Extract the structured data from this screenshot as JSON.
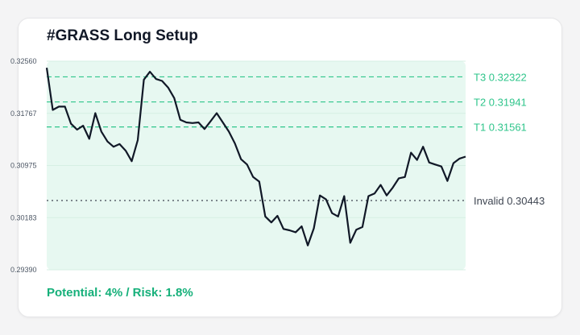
{
  "title": "#GRASS Long Setup",
  "footer": "Potential: 4% / Risk: 1.8%",
  "colors": {
    "target": "#2fc58b",
    "invalid": "#3f4652",
    "line": "#111827",
    "zone_fill": "#e7f8f1",
    "footer": "#16b07a"
  },
  "chart_data": {
    "type": "line",
    "title": "#GRASS Long Setup",
    "ylim": [
      0.2939,
      0.3256
    ],
    "y_ticks": [
      "0.32560",
      "0.31767",
      "0.30975",
      "0.30183",
      "0.29390"
    ],
    "grid": "horizontal",
    "levels": [
      {
        "name": "T3",
        "label": "T3 0.32322",
        "value": 0.32322,
        "style": "dashed",
        "color": "#2fc58b"
      },
      {
        "name": "T2",
        "label": "T2 0.31941",
        "value": 0.31941,
        "style": "dashed",
        "color": "#2fc58b"
      },
      {
        "name": "T1",
        "label": "T1 0.31561",
        "value": 0.31561,
        "style": "dashed",
        "color": "#2fc58b"
      },
      {
        "name": "Invalid",
        "label": "Invalid 0.30443",
        "value": 0.30443,
        "style": "dotted",
        "color": "#3f4652"
      }
    ],
    "series": [
      {
        "values": [
          0.3246,
          0.3182,
          0.3187,
          0.3187,
          0.3161,
          0.3152,
          0.3158,
          0.3138,
          0.3177,
          0.3149,
          0.3134,
          0.3126,
          0.313,
          0.312,
          0.3104,
          0.3136,
          0.3228,
          0.324,
          0.3229,
          0.3226,
          0.3216,
          0.32,
          0.3167,
          0.3163,
          0.3162,
          0.3163,
          0.3153,
          0.3165,
          0.3177,
          0.3163,
          0.3149,
          0.3131,
          0.3107,
          0.3099,
          0.308,
          0.3073,
          0.302,
          0.3011,
          0.3021,
          0.3001,
          0.2999,
          0.2996,
          0.3005,
          0.2976,
          0.3002,
          0.3052,
          0.3046,
          0.3025,
          0.302,
          0.3051,
          0.298,
          0.3,
          0.3004,
          0.3051,
          0.3055,
          0.3068,
          0.3052,
          0.3064,
          0.3078,
          0.308,
          0.3117,
          0.3106,
          0.3126,
          0.3102,
          0.3099,
          0.3096,
          0.3074,
          0.3101,
          0.3108,
          0.3111
        ]
      }
    ]
  }
}
